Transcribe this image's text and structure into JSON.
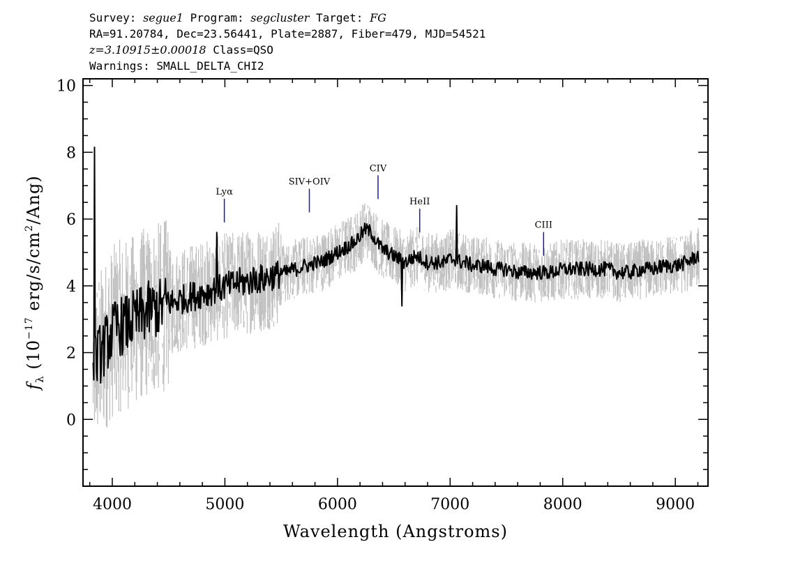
{
  "header": {
    "survey_label": "Survey:",
    "survey": "segue1",
    "program_label": "Program:",
    "program": "segcluster",
    "target_label": "Target:",
    "target": "FG",
    "line2": "RA=91.20784, Dec=23.56441, Plate=2887, Fiber=479, MJD=54521",
    "redshift": "z=3.10915±0.00018",
    "class": "Class=QSO",
    "warnings": "Warnings: SMALL_DELTA_CHI2"
  },
  "chart_data": {
    "type": "line",
    "xlabel": "Wavelength (Angstroms)",
    "ylabel_main": "f",
    "ylabel_sub": "λ",
    "ylabel_pre": " (10",
    "ylabel_exp1": "−17",
    "ylabel_mid": " erg/s/cm",
    "ylabel_exp2": "2",
    "ylabel_post": "/Ang)",
    "xlim": [
      3740,
      9290
    ],
    "ylim": [
      -2.0,
      10.2
    ],
    "x_ticks": [
      4000,
      5000,
      6000,
      7000,
      8000,
      9000
    ],
    "x_tick_labels": [
      "4000",
      "5000",
      "6000",
      "7000",
      "8000",
      "9000"
    ],
    "y_ticks": [
      0,
      2,
      4,
      6,
      8,
      10
    ],
    "y_tick_labels": [
      "0",
      "2",
      "4",
      "6",
      "8",
      "10"
    ],
    "series": [
      {
        "role": "error",
        "color": "#c0c0c0"
      },
      {
        "role": "flux",
        "color": "#000000",
        "x": [
          3830,
          3850,
          3900,
          3950,
          4000,
          4050,
          4100,
          4150,
          4200,
          4250,
          4300,
          4350,
          4400,
          4450,
          4500,
          4550,
          4600,
          4650,
          4700,
          4750,
          4800,
          4850,
          4900,
          4950,
          5000,
          5050,
          5100,
          5150,
          5200,
          5250,
          5300,
          5350,
          5400,
          5450,
          5500,
          5550,
          5600,
          5650,
          5700,
          5750,
          5800,
          5850,
          5900,
          5950,
          6000,
          6050,
          6100,
          6150,
          6200,
          6250,
          6300,
          6350,
          6400,
          6450,
          6500,
          6550,
          6600,
          6650,
          6700,
          6750,
          6800,
          6850,
          6900,
          6950,
          7000,
          7050,
          7100,
          7150,
          7200,
          7300,
          7400,
          7500,
          7600,
          7700,
          7800,
          7900,
          8000,
          8100,
          8200,
          8300,
          8400,
          8500,
          8600,
          8700,
          8800,
          8900,
          9000,
          9100,
          9200
        ],
        "y": [
          1.5,
          1.8,
          2.0,
          2.3,
          2.6,
          2.8,
          2.8,
          2.9,
          3.0,
          3.1,
          3.2,
          3.3,
          3.3,
          3.4,
          3.5,
          3.5,
          3.6,
          3.6,
          3.7,
          3.7,
          3.8,
          3.8,
          3.9,
          3.9,
          4.0,
          4.0,
          4.1,
          4.1,
          4.1,
          4.2,
          4.2,
          4.2,
          4.3,
          4.3,
          4.4,
          4.4,
          4.5,
          4.5,
          4.6,
          4.6,
          4.7,
          4.7,
          4.8,
          4.9,
          5.0,
          5.1,
          5.2,
          5.3,
          5.5,
          5.7,
          5.6,
          5.3,
          5.1,
          5.0,
          4.9,
          4.8,
          4.7,
          4.8,
          4.9,
          4.8,
          4.7,
          4.7,
          4.7,
          4.7,
          4.8,
          4.8,
          4.7,
          4.7,
          4.6,
          4.6,
          4.5,
          4.5,
          4.4,
          4.4,
          4.4,
          4.4,
          4.5,
          4.5,
          4.5,
          4.5,
          4.5,
          4.4,
          4.4,
          4.5,
          4.5,
          4.6,
          4.6,
          4.7,
          4.9
        ]
      }
    ],
    "line_markers": [
      {
        "label": "Lyα",
        "x": 4995,
        "y": 5.9
      },
      {
        "label": "SIV+OIV",
        "x": 5750,
        "y": 6.2
      },
      {
        "label": "CIV",
        "x": 6360,
        "y": 6.6
      },
      {
        "label": "HeII",
        "x": 6730,
        "y": 5.6
      },
      {
        "label": "CIII",
        "x": 7830,
        "y": 4.9
      }
    ]
  }
}
